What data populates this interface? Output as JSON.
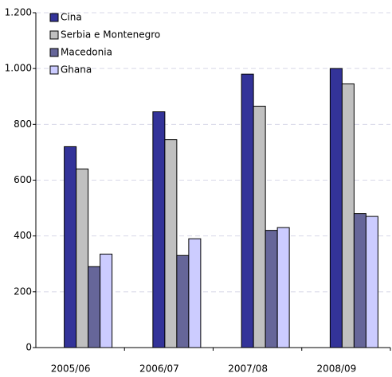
{
  "chart_data": {
    "type": "bar",
    "categories": [
      "2005/06",
      "2006/07",
      "2007/08",
      "2008/09"
    ],
    "series": [
      {
        "name": "Cina",
        "color": "#333399",
        "values": [
          720,
          845,
          980,
          1000
        ]
      },
      {
        "name": "Serbia e Montenegro",
        "color": "#c0c0c0",
        "values": [
          640,
          745,
          865,
          945
        ]
      },
      {
        "name": "Macedonia",
        "color": "#666699",
        "values": [
          290,
          330,
          420,
          480
        ]
      },
      {
        "name": "Ghana",
        "color": "#ccccff",
        "values": [
          335,
          390,
          430,
          470
        ]
      }
    ],
    "ylim": [
      0,
      1200
    ],
    "yticks": [
      0,
      200,
      400,
      600,
      800,
      {
        "value": 1000,
        "label": "1.000"
      },
      {
        "value": 1200,
        "label": "1.200"
      }
    ],
    "grid": true,
    "legend": "upper left"
  }
}
